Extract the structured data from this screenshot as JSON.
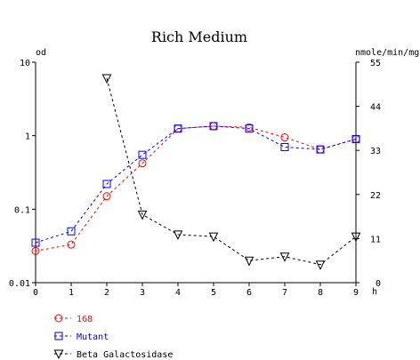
{
  "chart_data": {
    "type": "line",
    "title": "Rich Medium",
    "xlabel": "h",
    "ylabel_left": "od",
    "ylabel_right": "nmole/min/mg",
    "x_ticks": [
      "0",
      "1",
      "2",
      "3",
      "4",
      "5",
      "6",
      "7",
      "8",
      "9"
    ],
    "xlim": [
      0,
      9
    ],
    "y_left_scale": "log",
    "y_left_lim": [
      0.01,
      10
    ],
    "y_left_ticks": [
      0.01,
      0.1,
      1,
      10
    ],
    "y_left_tick_labels": [
      "0.01",
      "0.1",
      "1",
      "10"
    ],
    "y_right_lim": [
      0,
      55
    ],
    "y_right_ticks": [
      0,
      11,
      22,
      33,
      44,
      55
    ],
    "y_right_tick_labels": [
      "0",
      "11",
      "22",
      "33",
      "44",
      "55"
    ],
    "grid": false,
    "legend_position": "bottom-left",
    "series": [
      {
        "name": "168",
        "axis": "left",
        "color": "#ff0000",
        "marker": "circle",
        "x": [
          0,
          1,
          2,
          3,
          4,
          5,
          6,
          7,
          8,
          9
        ],
        "values": [
          0.027,
          0.033,
          0.15,
          0.42,
          1.25,
          1.35,
          1.3,
          0.95,
          0.65,
          0.9
        ]
      },
      {
        "name": "Mutant",
        "axis": "left",
        "color": "#0000ff",
        "marker": "square",
        "x": [
          0,
          1,
          2,
          3,
          4,
          5,
          6,
          7,
          8,
          9
        ],
        "values": [
          0.035,
          0.05,
          0.22,
          0.55,
          1.25,
          1.35,
          1.25,
          0.7,
          0.65,
          0.9
        ]
      },
      {
        "name": "Beta Galactosidase",
        "axis": "right",
        "color": "#000000",
        "marker": "triangle-down",
        "x": [
          2,
          3,
          4,
          5,
          6,
          7,
          8,
          9
        ],
        "values": [
          51,
          17,
          12,
          11.5,
          5.5,
          6.5,
          4.5,
          11.5
        ]
      }
    ]
  }
}
